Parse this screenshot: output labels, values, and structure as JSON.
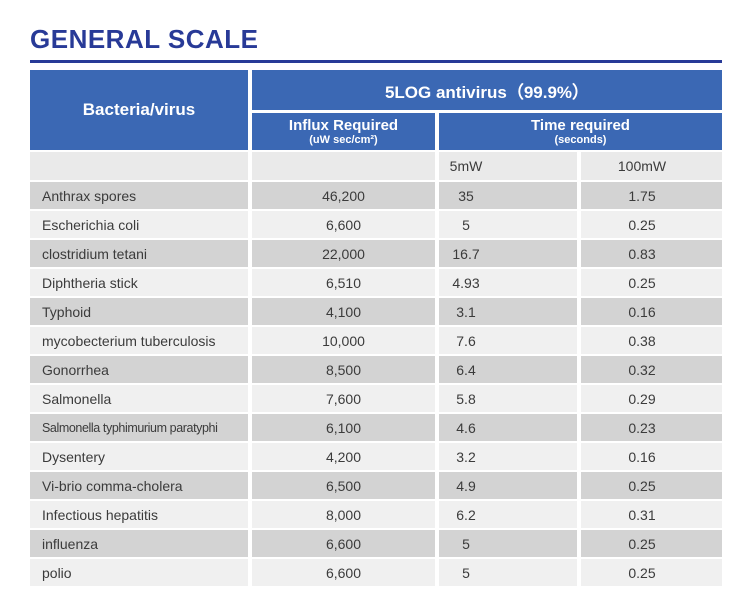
{
  "title": "GENERAL SCALE",
  "colors": {
    "header_blue": "#3b68b4",
    "title_blue": "#283a97",
    "row_dark": "#d3d3d3",
    "row_light": "#f0f0f0",
    "subheader_gray": "#eaeaea",
    "header_text": "#ffffff",
    "body_text": "#3b3b3b"
  },
  "table": {
    "bacteria_header": "Bacteria/virus",
    "group_header": "5LOG antivirus（99.9%）",
    "influx_header": "Influx Required",
    "influx_unit": "(uW sec/cm²)",
    "time_header": "Time required",
    "time_unit": "(seconds)",
    "power_columns": [
      "5mW",
      "100mW"
    ],
    "rows": [
      {
        "name": "Anthrax spores",
        "influx": "46,200",
        "time_5mw": "35",
        "time_100mw": "1.75"
      },
      {
        "name": "Escherichia coli",
        "influx": "6,600",
        "time_5mw": "5",
        "time_100mw": "0.25"
      },
      {
        "name": "clostridium tetani",
        "influx": "22,000",
        "time_5mw": "16.7",
        "time_100mw": "0.83"
      },
      {
        "name": "Diphtheria stick",
        "influx": "6,510",
        "time_5mw": "4.93",
        "time_100mw": "0.25"
      },
      {
        "name": "Typhoid",
        "influx": "4,100",
        "time_5mw": "3.1",
        "time_100mw": "0.16"
      },
      {
        "name": "mycobecterium tuberculosis",
        "influx": "10,000",
        "time_5mw": "7.6",
        "time_100mw": "0.38"
      },
      {
        "name": "Gonorrhea",
        "influx": "8,500",
        "time_5mw": "6.4",
        "time_100mw": "0.32"
      },
      {
        "name": "Salmonella",
        "influx": "7,600",
        "time_5mw": "5.8",
        "time_100mw": "0.29"
      },
      {
        "name": "Salmonella typhimurium paratyphi",
        "influx": "6,100",
        "time_5mw": "4.6",
        "time_100mw": "0.23"
      },
      {
        "name": "Dysentery",
        "influx": "4,200",
        "time_5mw": "3.2",
        "time_100mw": "0.16"
      },
      {
        "name": "Vi-brio comma-cholera",
        "influx": "6,500",
        "time_5mw": "4.9",
        "time_100mw": "0.25"
      },
      {
        "name": "Infectious hepatitis",
        "influx": "8,000",
        "time_5mw": "6.2",
        "time_100mw": "0.31"
      },
      {
        "name": "influenza",
        "influx": "6,600",
        "time_5mw": "5",
        "time_100mw": "0.25"
      },
      {
        "name": "polio",
        "influx": "6,600",
        "time_5mw": "5",
        "time_100mw": "0.25"
      }
    ]
  }
}
